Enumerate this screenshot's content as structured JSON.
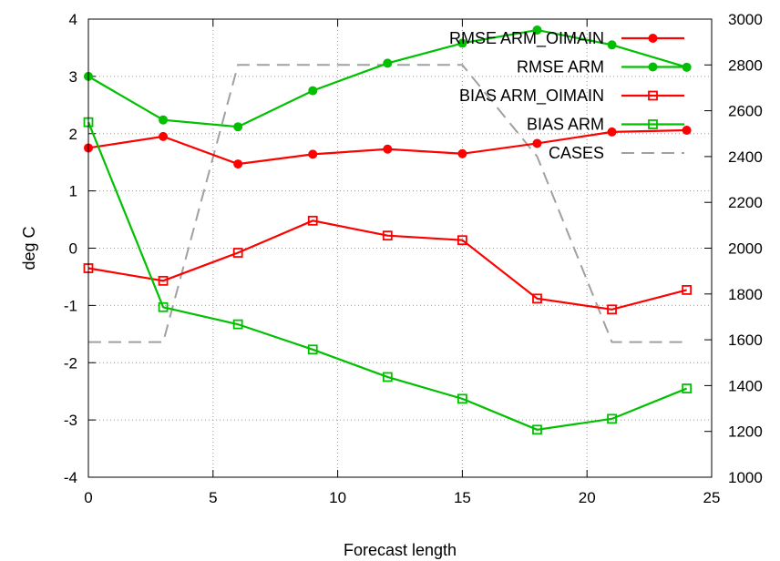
{
  "chart_data": {
    "type": "line",
    "title": "",
    "xlabel": "Forecast length",
    "ylabel": "deg C",
    "x_ticks": [
      "0",
      "5",
      "10",
      "15",
      "20",
      "25"
    ],
    "y_ticks": [
      "-4",
      "-3",
      "-2",
      "-1",
      "0",
      "1",
      "2",
      "3",
      "4"
    ],
    "y2_ticks": [
      "1000",
      "1200",
      "1400",
      "1600",
      "1800",
      "2000",
      "2200",
      "2400",
      "2600",
      "2800",
      "3000"
    ],
    "xlim": [
      0,
      25
    ],
    "ylim": [
      -4,
      4
    ],
    "y2lim": [
      1000,
      3000
    ],
    "grid": true,
    "legend_position": "top-right",
    "series": [
      {
        "name": "RMSE ARM_OIMAIN",
        "axis": "left",
        "color": "#ff0000",
        "marker": "filled-circle",
        "dash": "solid",
        "x": [
          0,
          3,
          6,
          9,
          12,
          15,
          18,
          21,
          24
        ],
        "values": [
          1.75,
          1.95,
          1.47,
          1.64,
          1.73,
          1.65,
          1.83,
          2.03,
          2.06
        ]
      },
      {
        "name": "RMSE ARM",
        "axis": "left",
        "color": "#00c000",
        "marker": "filled-circle",
        "dash": "solid",
        "x": [
          0,
          3,
          6,
          9,
          12,
          15,
          18,
          21,
          24
        ],
        "values": [
          3.0,
          2.24,
          2.12,
          2.75,
          3.23,
          3.58,
          3.81,
          3.55,
          3.16
        ]
      },
      {
        "name": "BIAS ARM_OIMAIN",
        "axis": "left",
        "color": "#ff0000",
        "marker": "open-square",
        "dash": "solid",
        "x": [
          0,
          3,
          6,
          9,
          12,
          15,
          18,
          21,
          24
        ],
        "values": [
          -0.35,
          -0.57,
          -0.08,
          0.48,
          0.22,
          0.14,
          -0.88,
          -1.07,
          -0.73
        ]
      },
      {
        "name": "BIAS ARM",
        "axis": "left",
        "color": "#00c000",
        "marker": "open-square",
        "dash": "solid",
        "x": [
          0,
          3,
          6,
          9,
          12,
          15,
          18,
          21,
          24
        ],
        "values": [
          2.2,
          -1.03,
          -1.33,
          -1.77,
          -2.25,
          -2.63,
          -3.17,
          -2.98,
          -2.45
        ]
      },
      {
        "name": "CASES",
        "axis": "right",
        "color": "#a0a0a0",
        "marker": "none",
        "dash": "dashed",
        "x": [
          0,
          3,
          6,
          9,
          12,
          15,
          18,
          21,
          24
        ],
        "values": [
          1590,
          1590,
          2800,
          2800,
          2800,
          2800,
          2400,
          1590,
          1590
        ]
      }
    ]
  }
}
